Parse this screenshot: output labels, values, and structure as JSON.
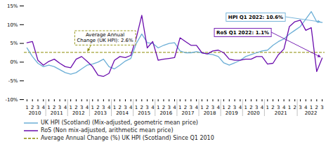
{
  "chart_data": {
    "type": "line",
    "categories": [
      "1",
      "2",
      "3",
      "4",
      "1",
      "2",
      "3",
      "4",
      "1",
      "2",
      "3",
      "4",
      "1",
      "2",
      "3",
      "4",
      "1",
      "2",
      "3",
      "4",
      "1",
      "2",
      "3",
      "4",
      "1",
      "2",
      "3",
      "4",
      "1",
      "2",
      "3",
      "4",
      "1",
      "2",
      "3",
      "4",
      "1",
      "2",
      "3",
      "4",
      "1",
      "2",
      "3",
      "4",
      "1",
      "2",
      "3",
      "4",
      "1",
      "2",
      "3",
      "4",
      "1",
      "2",
      "3"
    ],
    "category_groups": [
      {
        "label": "2010",
        "count": 4
      },
      {
        "label": "2011",
        "count": 4
      },
      {
        "label": "2012",
        "count": 4
      },
      {
        "label": "2013",
        "count": 4
      },
      {
        "label": "2014",
        "count": 4
      },
      {
        "label": "2015",
        "count": 4
      },
      {
        "label": "2016",
        "count": 4
      },
      {
        "label": "2017",
        "count": 4
      },
      {
        "label": "2018",
        "count": 4
      },
      {
        "label": "2019",
        "count": 4
      },
      {
        "label": "2020",
        "count": 4
      },
      {
        "label": "2021",
        "count": 6
      },
      {
        "label": "2022",
        "count": 5
      }
    ],
    "series": [
      {
        "name": "UK HPI (Scotland) (Mix-adjusted, geometric mean price)",
        "color": "#6baed6",
        "type": "line",
        "annotation": "HPI Q1 2022: 10.6%",
        "values": [
          3.8,
          1.5,
          -0.3,
          -1.2,
          -0.8,
          -1.2,
          -2.0,
          -2.8,
          -3.2,
          -2.8,
          -1.8,
          -0.8,
          -0.5,
          0.0,
          0.8,
          -1.2,
          -1.8,
          -0.8,
          0.3,
          1.0,
          5.0,
          7.5,
          5.2,
          5.0,
          3.8,
          4.5,
          5.0,
          5.2,
          3.0,
          2.5,
          2.5,
          2.8,
          2.5,
          2.2,
          2.0,
          1.5,
          -0.2,
          -0.8,
          -0.2,
          0.5,
          1.5,
          2.0,
          2.5,
          3.0,
          3.2,
          4.5,
          5.5,
          6.2,
          7.5,
          8.5,
          9.5,
          11.5,
          13.5,
          10.8,
          10.6
        ]
      },
      {
        "name": "RoS (Non mix-adjusted, arithmetic mean price)",
        "color": "#6a0dad",
        "type": "line",
        "annotation": "RoS Q1 2022: 1.1%",
        "values": [
          5.2,
          5.5,
          0.5,
          -0.8,
          0.2,
          0.8,
          -0.3,
          -1.2,
          -1.5,
          0.8,
          1.5,
          0.2,
          -1.2,
          -3.5,
          -3.8,
          -3.0,
          0.5,
          1.5,
          1.2,
          1.8,
          6.5,
          12.5,
          3.8,
          5.5,
          0.5,
          0.8,
          1.0,
          1.2,
          6.5,
          5.5,
          4.5,
          4.5,
          2.5,
          2.2,
          3.0,
          3.2,
          2.5,
          0.8,
          0.5,
          0.5,
          0.8,
          0.8,
          1.5,
          1.5,
          -0.5,
          -0.3,
          2.0,
          3.5,
          9.5,
          10.8,
          11.2,
          8.5,
          9.2,
          -2.5,
          1.1
        ]
      },
      {
        "name": "Average Annual Change (%) UK HPI (Scotland) Since Q1 2010",
        "color": "#8b8b00",
        "type": "hline",
        "line_style": "dashed",
        "annotation": "Average Annual\nChange (UK HPI): 2.6%",
        "value": 2.6
      }
    ],
    "ylim": [
      -10,
      15
    ],
    "yticks": [
      {
        "value": -10,
        "label": "-10%"
      },
      {
        "value": -5,
        "label": "-5%"
      },
      {
        "value": 0,
        "label": "0%"
      },
      {
        "value": 5,
        "label": "5%"
      },
      {
        "value": 10,
        "label": "10%"
      },
      {
        "value": 15,
        "label": "15%"
      }
    ],
    "grid": false,
    "legend": "bottom"
  }
}
